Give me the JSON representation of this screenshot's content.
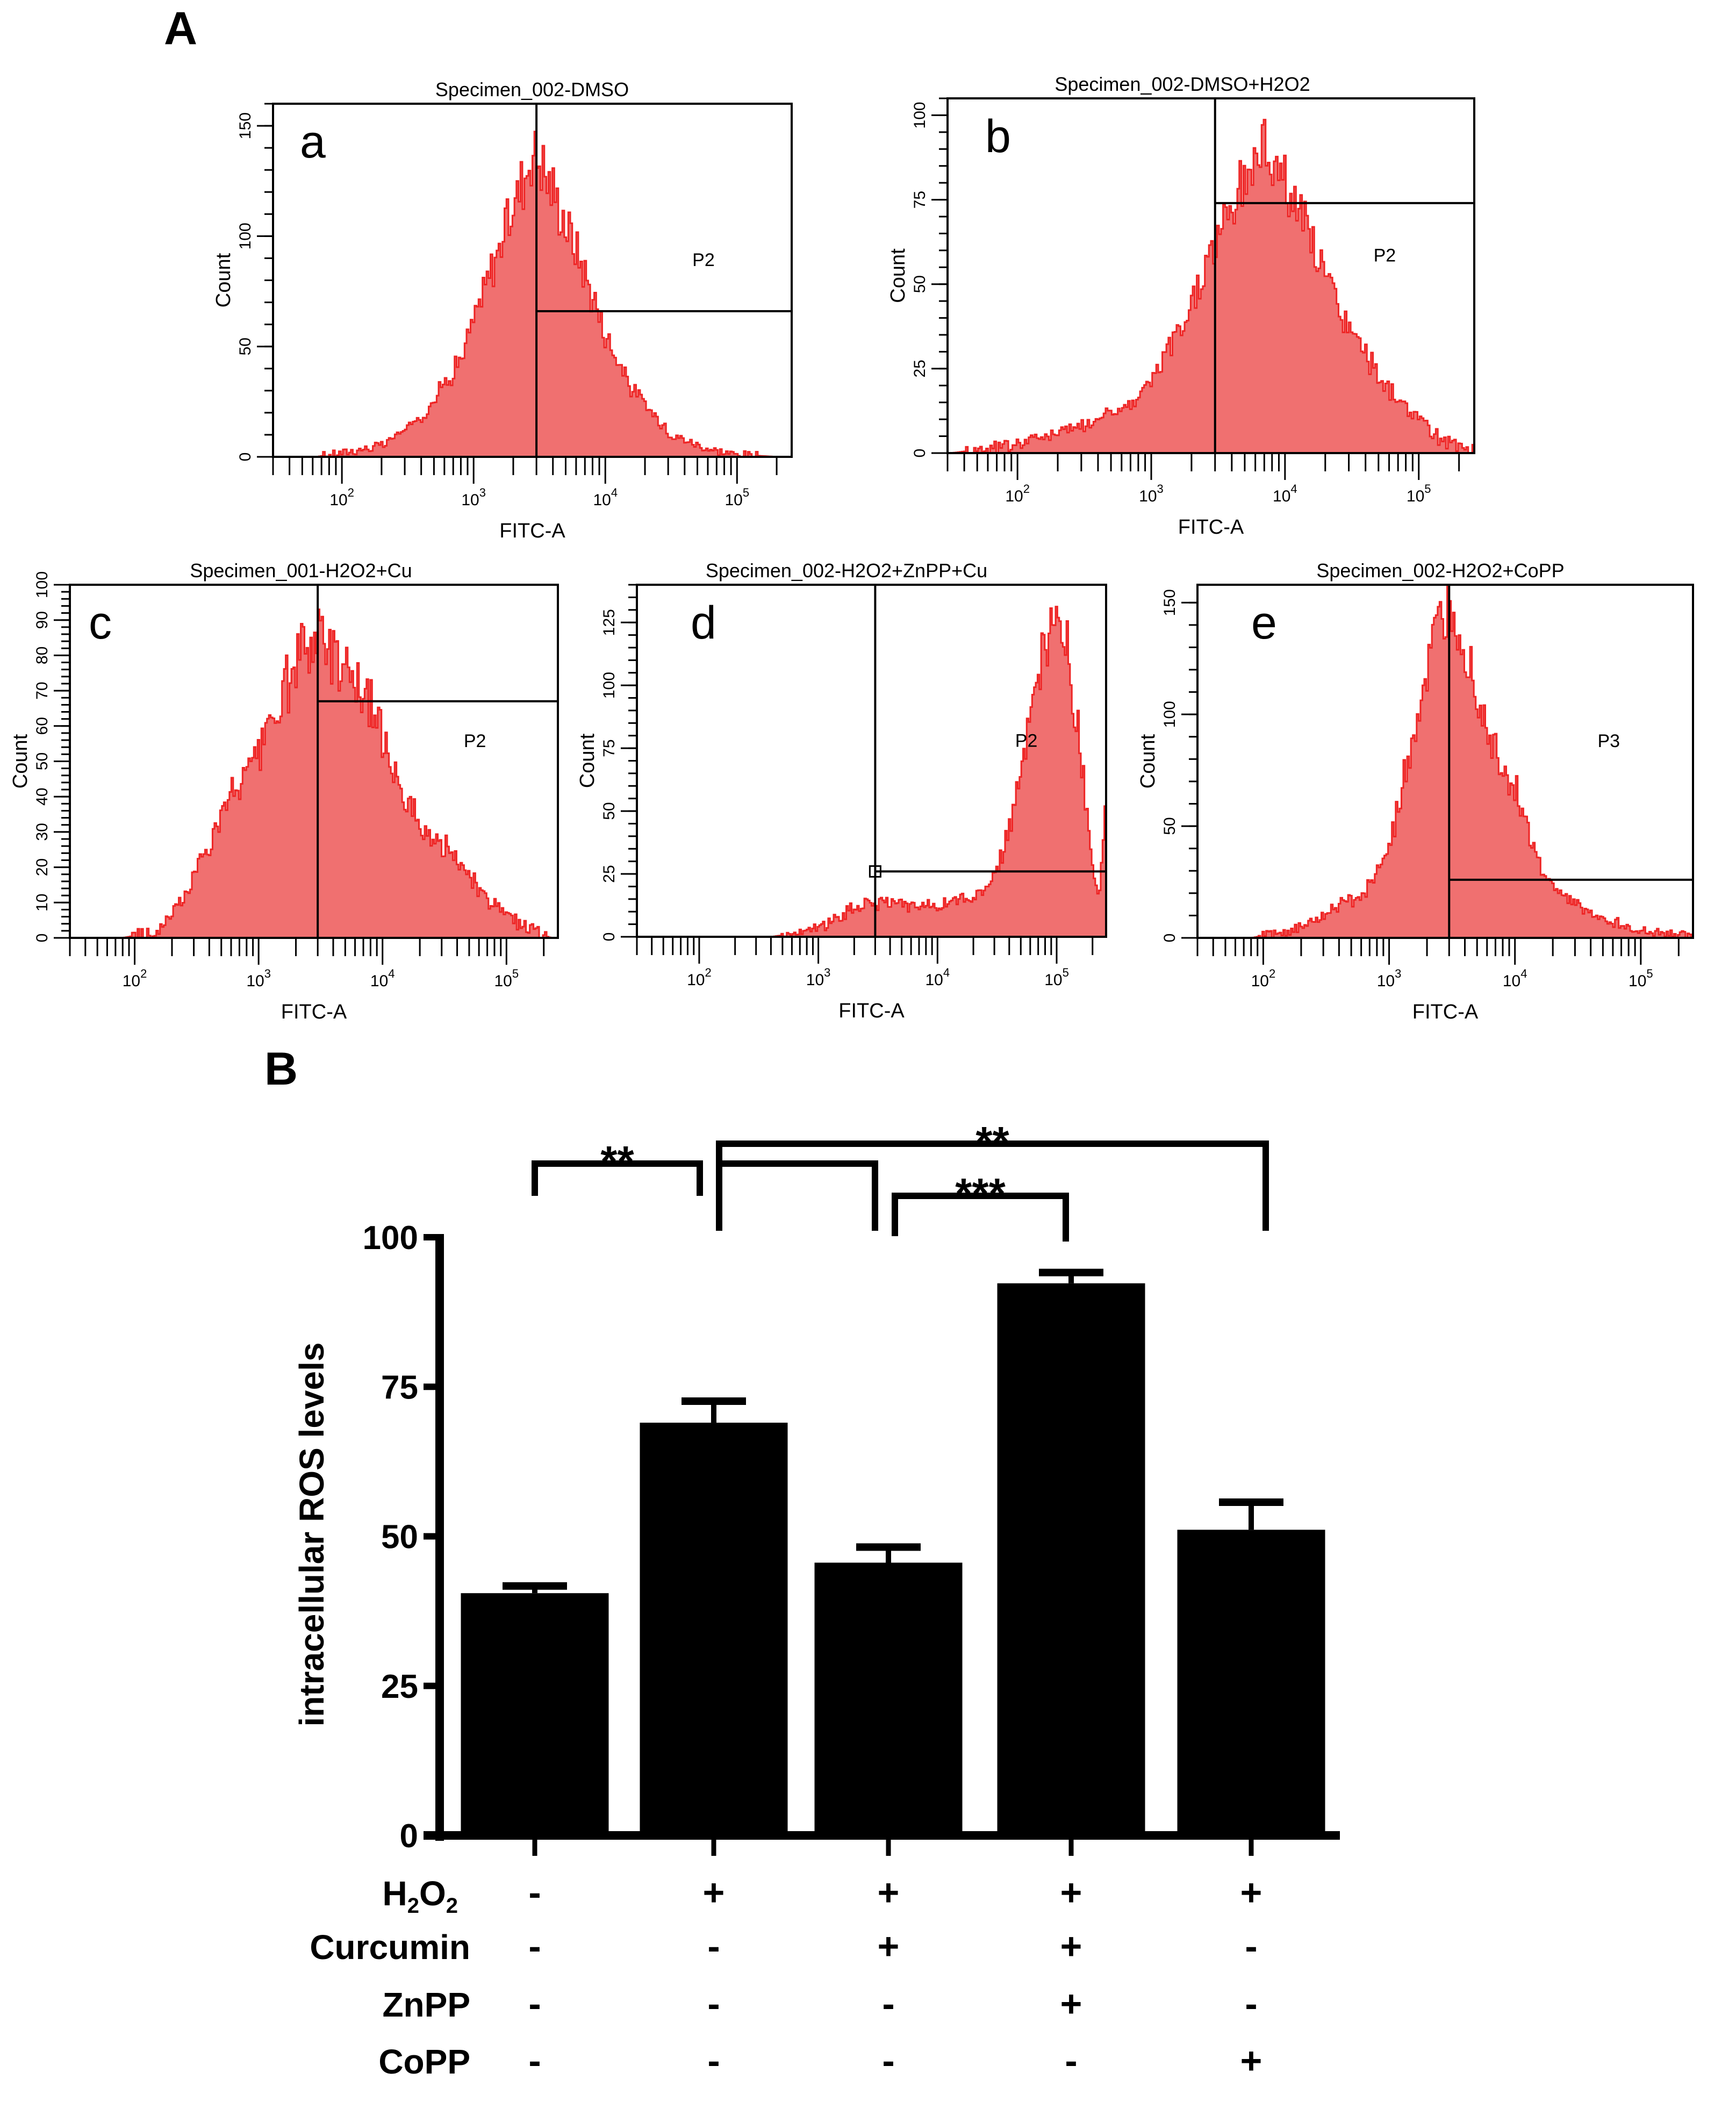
{
  "figure": {
    "panel_A_label": "A",
    "panel_B_label": "B"
  },
  "chart_data": [
    {
      "type": "histogram",
      "id": "a",
      "panel_letter": "a",
      "title": "Specimen_002-DMSO",
      "xlabel": "FITC-A",
      "ylabel": "Count",
      "xscale": "log",
      "xlim": [
        30,
        260000
      ],
      "x_tick_labels": [
        "10^2",
        "10^3",
        "10^4",
        "10^5"
      ],
      "ylim": [
        0,
        160
      ],
      "y_tick_labels": [
        "0",
        "50",
        "100",
        "150"
      ],
      "y_tick_values": [
        0,
        50,
        100,
        150
      ],
      "gate": {
        "label": "P2",
        "x_min": 3000,
        "y_marker": 66
      },
      "fill_color": "#f07070",
      "line_color": "#ee2424",
      "profile": {
        "log_x": [
          1.8,
          2.0,
          2.3,
          2.6,
          2.9,
          3.1,
          3.3,
          3.45,
          3.6,
          3.8,
          4.0,
          4.2,
          4.5,
          4.8,
          5.0,
          5.3
        ],
        "counts": [
          0,
          2,
          5,
          18,
          45,
          80,
          115,
          140,
          120,
          90,
          55,
          30,
          10,
          3,
          1,
          0
        ]
      }
    },
    {
      "type": "histogram",
      "id": "b",
      "panel_letter": "b",
      "title": "Specimen_002-DMSO+H2O2",
      "xlabel": "FITC-A",
      "ylabel": "Count",
      "xscale": "log",
      "xlim": [
        30,
        260000
      ],
      "x_tick_labels": [
        "10^2",
        "10^3",
        "10^4",
        "10^5"
      ],
      "ylim": [
        0,
        105
      ],
      "y_tick_labels": [
        "0",
        "25",
        "50",
        "75",
        "100"
      ],
      "y_tick_values": [
        0,
        25,
        50,
        75,
        100
      ],
      "gate": {
        "label": "P2",
        "x_min": 3000,
        "y_marker": 74
      },
      "fill_color": "#f07070",
      "line_color": "#ee2424",
      "profile": {
        "log_x": [
          1.5,
          1.9,
          2.3,
          2.6,
          2.9,
          3.2,
          3.5,
          3.7,
          3.85,
          4.0,
          4.2,
          4.4,
          4.7,
          5.0,
          5.2,
          5.4
        ],
        "counts": [
          0,
          2,
          6,
          10,
          16,
          35,
          65,
          82,
          92,
          80,
          62,
          42,
          22,
          9,
          3,
          1
        ]
      }
    },
    {
      "type": "histogram",
      "id": "c",
      "panel_letter": "c",
      "title": "Specimen_001-H2O2+Cu",
      "xlabel": "FITC-A",
      "ylabel": "Count",
      "xscale": "log",
      "xlim": [
        30,
        260000
      ],
      "x_tick_labels": [
        "10^2",
        "10^3",
        "10^4",
        "10^5"
      ],
      "ylim": [
        0,
        100
      ],
      "y_tick_labels": [
        "0",
        "10",
        "20",
        "30",
        "40",
        "50",
        "60",
        "70",
        "80",
        "90",
        "100"
      ],
      "y_tick_values": [
        0,
        10,
        20,
        30,
        40,
        50,
        60,
        70,
        80,
        90,
        100
      ],
      "gate": {
        "label": "P2",
        "x_min": 3000,
        "y_marker": 67
      },
      "fill_color": "#f07070",
      "line_color": "#ee2424",
      "profile": {
        "log_x": [
          1.9,
          2.2,
          2.4,
          2.6,
          2.8,
          3.0,
          3.2,
          3.45,
          3.7,
          3.9,
          4.1,
          4.3,
          4.6,
          4.8,
          5.0,
          5.2,
          5.35
        ],
        "counts": [
          0,
          2,
          12,
          28,
          42,
          52,
          70,
          86,
          78,
          65,
          48,
          30,
          22,
          12,
          6,
          2,
          0
        ]
      }
    },
    {
      "type": "histogram",
      "id": "d",
      "panel_letter": "d",
      "title": "Specimen_002-H2O2+ZnPP+Cu",
      "xlabel": "FITC-A",
      "ylabel": "Count",
      "xscale": "log",
      "xlim": [
        30,
        260000
      ],
      "x_tick_labels": [
        "10^2",
        "10^3",
        "10^4",
        "10^5"
      ],
      "ylim": [
        0,
        140
      ],
      "y_tick_labels": [
        "0",
        "25",
        "50",
        "75",
        "100",
        "125"
      ],
      "y_tick_values": [
        0,
        25,
        50,
        75,
        100,
        125
      ],
      "gate": {
        "label": "P2",
        "x_min": 3000,
        "y_marker": 26
      },
      "fill_color": "#f07070",
      "line_color": "#ee2424",
      "profile": {
        "log_x": [
          2.6,
          2.9,
          3.1,
          3.3,
          3.5,
          3.8,
          4.1,
          4.4,
          4.55,
          4.7,
          4.85,
          5.0,
          5.1,
          5.2,
          5.3,
          5.35,
          5.4
        ],
        "counts": [
          0,
          2,
          6,
          12,
          14,
          12,
          13,
          18,
          35,
          65,
          105,
          128,
          110,
          70,
          25,
          15,
          50
        ]
      }
    },
    {
      "type": "histogram",
      "id": "e",
      "panel_letter": "e",
      "title": "Specimen_002-H2O2+CoPP",
      "xlabel": "FITC-A",
      "ylabel": "Count",
      "xscale": "log",
      "xlim": [
        30,
        260000
      ],
      "x_tick_labels": [
        "10^2",
        "10^3",
        "10^4",
        "10^5"
      ],
      "ylim": [
        0,
        158
      ],
      "y_tick_labels": [
        "0",
        "50",
        "100",
        "150"
      ],
      "y_tick_values": [
        0,
        50,
        100,
        150
      ],
      "gate": {
        "label": "P3",
        "x_min": 3000,
        "y_marker": 26
      },
      "fill_color": "#f07070",
      "line_color": "#ee2424",
      "profile": {
        "log_x": [
          1.9,
          2.2,
          2.4,
          2.6,
          2.8,
          3.0,
          3.2,
          3.4,
          3.5,
          3.65,
          3.8,
          4.0,
          4.2,
          4.3,
          4.6,
          4.9,
          5.2,
          5.4
        ],
        "counts": [
          0,
          3,
          8,
          15,
          20,
          40,
          95,
          140,
          150,
          120,
          90,
          65,
          30,
          22,
          10,
          5,
          2,
          1
        ]
      }
    },
    {
      "type": "bar",
      "id": "B",
      "title": "",
      "xlabel": "",
      "ylabel": "intracellular ROS levels",
      "ylim": [
        0,
        100
      ],
      "y_tick_labels": [
        "0",
        "25",
        "50",
        "75",
        "100"
      ],
      "y_tick_values": [
        0,
        25,
        50,
        75,
        100
      ],
      "categories": [
        "DMSO",
        "H2O2",
        "H2O2+Curcumin",
        "H2O2+Curcumin+ZnPP",
        "H2O2+CoPP"
      ],
      "values": [
        40.5,
        69.0,
        45.6,
        92.3,
        51.1
      ],
      "error_upper": [
        1.2,
        3.6,
        2.6,
        1.8,
        4.6
      ],
      "bar_color": "#000000",
      "treatment_rows": [
        {
          "label": "H2O2",
          "label_main": "H",
          "label_sub1": "2",
          "label_mid": "O",
          "label_sub2": "2",
          "signs": [
            "-",
            "+",
            "+",
            "+",
            "+"
          ]
        },
        {
          "label": "Curcumin",
          "signs": [
            "-",
            "-",
            "+",
            "+",
            "-"
          ]
        },
        {
          "label": "ZnPP",
          "signs": [
            "-",
            "-",
            "-",
            "+",
            "-"
          ]
        },
        {
          "label": "CoPP",
          "signs": [
            "-",
            "-",
            "-",
            "-",
            "+"
          ]
        }
      ],
      "significance": [
        {
          "from": 0,
          "to": 1,
          "label": "**"
        },
        {
          "from": 1,
          "to": 2,
          "label": ""
        },
        {
          "from": 1,
          "to": 4,
          "label": "**"
        },
        {
          "from": 2,
          "to": 3,
          "label": "***"
        }
      ]
    }
  ]
}
